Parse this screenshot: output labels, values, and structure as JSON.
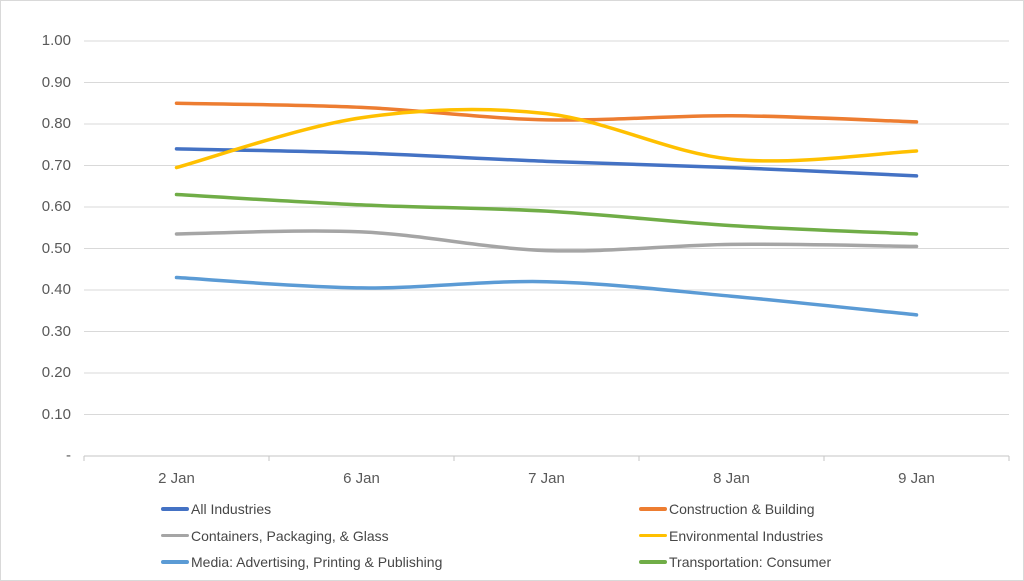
{
  "chart_data": {
    "type": "line",
    "title": "",
    "xlabel": "",
    "ylabel": "",
    "grid": true,
    "smooth": true,
    "legend_position": "bottom-two-columns",
    "ylim": [
      0,
      1.0
    ],
    "categories": [
      "2 Jan",
      "6 Jan",
      "7 Jan",
      "8 Jan",
      "9 Jan"
    ],
    "y_ticks": [
      {
        "value": 1.0,
        "label": "1.00"
      },
      {
        "value": 0.9,
        "label": "0.90"
      },
      {
        "value": 0.8,
        "label": "0.80"
      },
      {
        "value": 0.7,
        "label": "0.70"
      },
      {
        "value": 0.6,
        "label": "0.60"
      },
      {
        "value": 0.5,
        "label": "0.50"
      },
      {
        "value": 0.4,
        "label": "0.40"
      },
      {
        "value": 0.3,
        "label": "0.30"
      },
      {
        "value": 0.2,
        "label": "0.20"
      },
      {
        "value": 0.1,
        "label": "0.10"
      },
      {
        "value": 0.0,
        "label": "-"
      }
    ],
    "series": [
      {
        "name": "All Industries",
        "color": "#4472C4",
        "values": [
          0.74,
          0.73,
          0.71,
          0.695,
          0.675
        ]
      },
      {
        "name": "Construction & Building",
        "color": "#ED7D31",
        "values": [
          0.85,
          0.84,
          0.81,
          0.82,
          0.805
        ]
      },
      {
        "name": "Containers, Packaging, & Glass",
        "color": "#A5A5A5",
        "values": [
          0.535,
          0.54,
          0.495,
          0.51,
          0.505
        ]
      },
      {
        "name": "Environmental Industries",
        "color": "#FFC000",
        "values": [
          0.695,
          0.815,
          0.825,
          0.715,
          0.735
        ]
      },
      {
        "name": "Media: Advertising, Printing & Publishing",
        "color": "#5B9BD5",
        "values": [
          0.43,
          0.405,
          0.42,
          0.385,
          0.34
        ]
      },
      {
        "name": "Transportation: Consumer",
        "color": "#70AD47",
        "values": [
          0.63,
          0.605,
          0.59,
          0.555,
          0.535
        ]
      }
    ]
  },
  "colors": {
    "background": "#FFFFFF",
    "border": "#D9D9D9",
    "gridline": "#D9D9D9",
    "axis_line": "#C6C6C6",
    "axis_tick": "#C6C6C6",
    "tick_label_text": "#595959",
    "legend_text": "#474747"
  }
}
